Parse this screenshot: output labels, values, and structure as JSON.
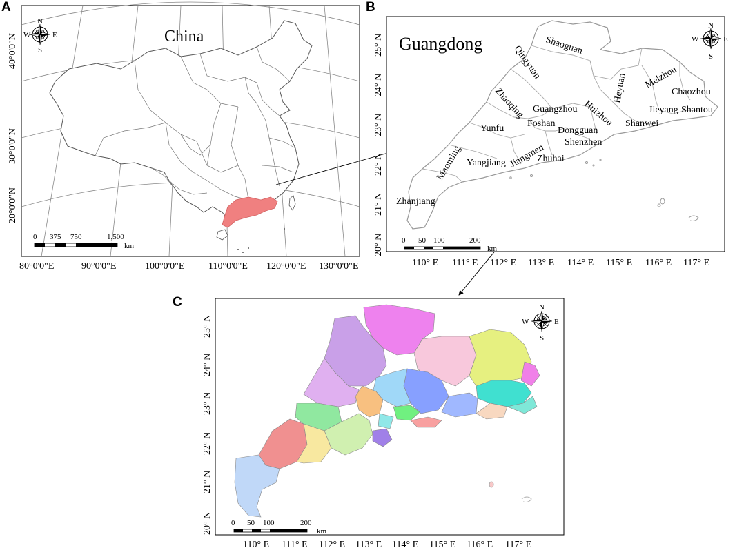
{
  "panels": {
    "a": {
      "label": "A",
      "title": "China",
      "lon_ticks": [
        "80°0'0\"E",
        "90°0'0\"E",
        "100°0'0\"E",
        "110°0'0\"E",
        "120°0'0\"E",
        "130°0'0\"E"
      ],
      "lat_ticks": [
        "40°0'0\"N",
        "30°0'0\"N",
        "20°0'0\"N"
      ],
      "scale": {
        "labels": [
          "0",
          "375",
          "750",
          "1,500"
        ],
        "unit": "km"
      },
      "highlight_color": "#f08080"
    },
    "b": {
      "label": "B",
      "title": "Guangdong",
      "lon_ticks": [
        "110° E",
        "111° E",
        "112° E",
        "113° E",
        "114° E",
        "115° E",
        "116° E",
        "117° E"
      ],
      "lat_ticks": [
        "25° N",
        "24° N",
        "23° N",
        "22° N",
        "21° N",
        "20° N"
      ],
      "scale": {
        "labels": [
          "0",
          "50",
          "100",
          "200"
        ],
        "unit": "km"
      },
      "cities": [
        "Shaoguan",
        "Qingyuan",
        "Heyuan",
        "Meizhou",
        "Chaozhou",
        "Zhaoqing",
        "Guangzhou",
        "Huizhou",
        "Jieyang",
        "Shantou",
        "Yunfu",
        "Foshan",
        "Dongguan",
        "Shanwei",
        "Shenzhen",
        "Maoming",
        "Yangjiang",
        "Jiangmen",
        "Zhuhai",
        "Zhanjiang"
      ]
    },
    "c": {
      "label": "C",
      "lon_ticks": [
        "110° E",
        "111° E",
        "112° E",
        "113° E",
        "114° E",
        "115° E",
        "116° E",
        "117° E"
      ],
      "lat_ticks": [
        "25° N",
        "24° N",
        "23° N",
        "22° N",
        "21° N",
        "20° N"
      ],
      "scale": {
        "labels": [
          "0",
          "50",
          "100",
          "200"
        ],
        "unit": "km"
      }
    }
  },
  "compass": {
    "n": "N",
    "s": "S",
    "e": "E",
    "w": "W"
  }
}
